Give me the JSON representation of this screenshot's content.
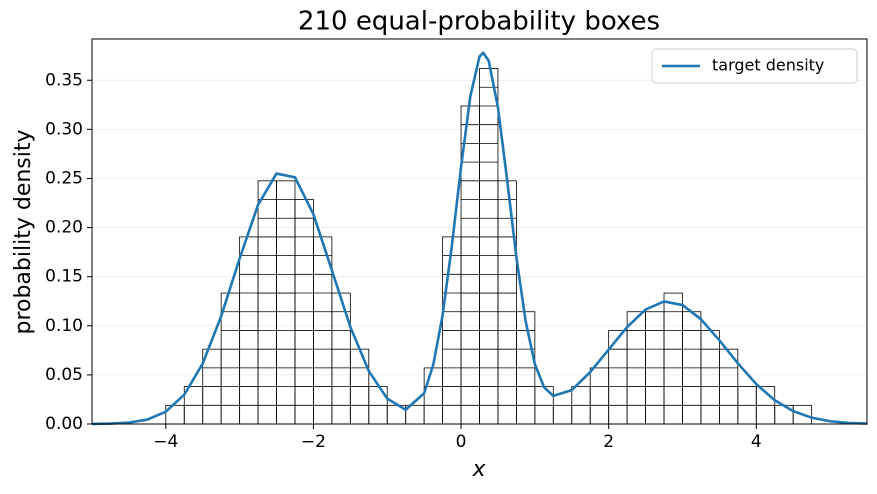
{
  "chart_data": {
    "type": "boxes-with-curve",
    "title": "210 equal-probability boxes",
    "xlabel": "x",
    "ylabel": "probability density",
    "xlim": [
      -5,
      5.5
    ],
    "ylim": [
      0,
      0.392
    ],
    "xticks": [
      {
        "value": -4,
        "label": "−4"
      },
      {
        "value": -2,
        "label": "−2"
      },
      0,
      2,
      4
    ],
    "yticks": [
      {
        "value": 0,
        "label": "0.00"
      },
      {
        "value": 0.05,
        "label": "0.05"
      },
      {
        "value": 0.1,
        "label": "0.10"
      },
      {
        "value": 0.15,
        "label": "0.15"
      },
      {
        "value": 0.2,
        "label": "0.20"
      },
      {
        "value": 0.25,
        "label": "0.25"
      },
      {
        "value": 0.3,
        "label": "0.30"
      },
      {
        "value": 0.35,
        "label": "0.35"
      }
    ],
    "grid": true,
    "legend": "upper right",
    "bins": [
      -4,
      -3.75,
      -3.5,
      -3.25,
      -3,
      -2.75,
      -2.5,
      -2.25,
      -2,
      -1.75,
      -1.5,
      -1.25,
      -1,
      -0.75,
      -0.5,
      -0.25,
      0,
      0.25,
      0.5,
      0.75,
      1,
      1.25,
      1.5,
      1.75,
      2,
      2.25,
      2.5,
      2.75,
      3,
      3.25,
      3.5,
      3.75,
      4,
      4.25,
      4.5,
      4.75
    ],
    "values": [
      0.019,
      0.0381,
      0.0762,
      0.1333,
      0.1905,
      0.2476,
      0.2476,
      0.2286,
      0.1905,
      0.1333,
      0.0762,
      0.0381,
      0.019,
      0.019,
      0.0571,
      0.1905,
      0.3238,
      0.3619,
      0.2476,
      0.1143,
      0.0381,
      0.019,
      0.0381,
      0.0571,
      0.0952,
      0.1143,
      0.1143,
      0.1333,
      0.1143,
      0.0952,
      0.0762,
      0.0381,
      0.0381,
      0.019,
      0.019
    ],
    "box_color": "#000000",
    "series": [
      {
        "name": "target density",
        "color": "#1f77b4",
        "x": [
          -5,
          -4.75,
          -4.5,
          -4.25,
          -4,
          -3.75,
          -3.5,
          -3.25,
          -3,
          -2.75,
          -2.5,
          -2.25,
          -2,
          -1.75,
          -1.5,
          -1.25,
          -1,
          -0.75,
          -0.5,
          -0.375,
          -0.25,
          -0.125,
          0,
          0.125,
          0.25,
          0.3,
          0.375,
          0.5,
          0.625,
          0.75,
          0.875,
          1,
          1.125,
          1.25,
          1.5,
          1.75,
          2,
          2.25,
          2.5,
          2.75,
          3,
          3.25,
          3.5,
          3.75,
          4,
          4.25,
          4.5,
          4.75,
          5,
          5.25,
          5.5
        ],
        "values": [
          0.0001,
          0.0004,
          0.0014,
          0.0045,
          0.0125,
          0.0298,
          0.0616,
          0.1097,
          0.1685,
          0.2232,
          0.255,
          0.2512,
          0.2135,
          0.1565,
          0.0989,
          0.0539,
          0.0258,
          0.0145,
          0.0313,
          0.0607,
          0.1108,
          0.1811,
          0.2617,
          0.3333,
          0.3741,
          0.378,
          0.3697,
          0.3222,
          0.2481,
          0.1697,
          0.1047,
          0.061,
          0.0374,
          0.0286,
          0.0345,
          0.0529,
          0.0758,
          0.0987,
          0.1165,
          0.1248,
          0.1211,
          0.1067,
          0.0852,
          0.0618,
          0.0406,
          0.0242,
          0.0131,
          0.0064,
          0.0028,
          0.0011,
          0.0004
        ]
      }
    ]
  }
}
